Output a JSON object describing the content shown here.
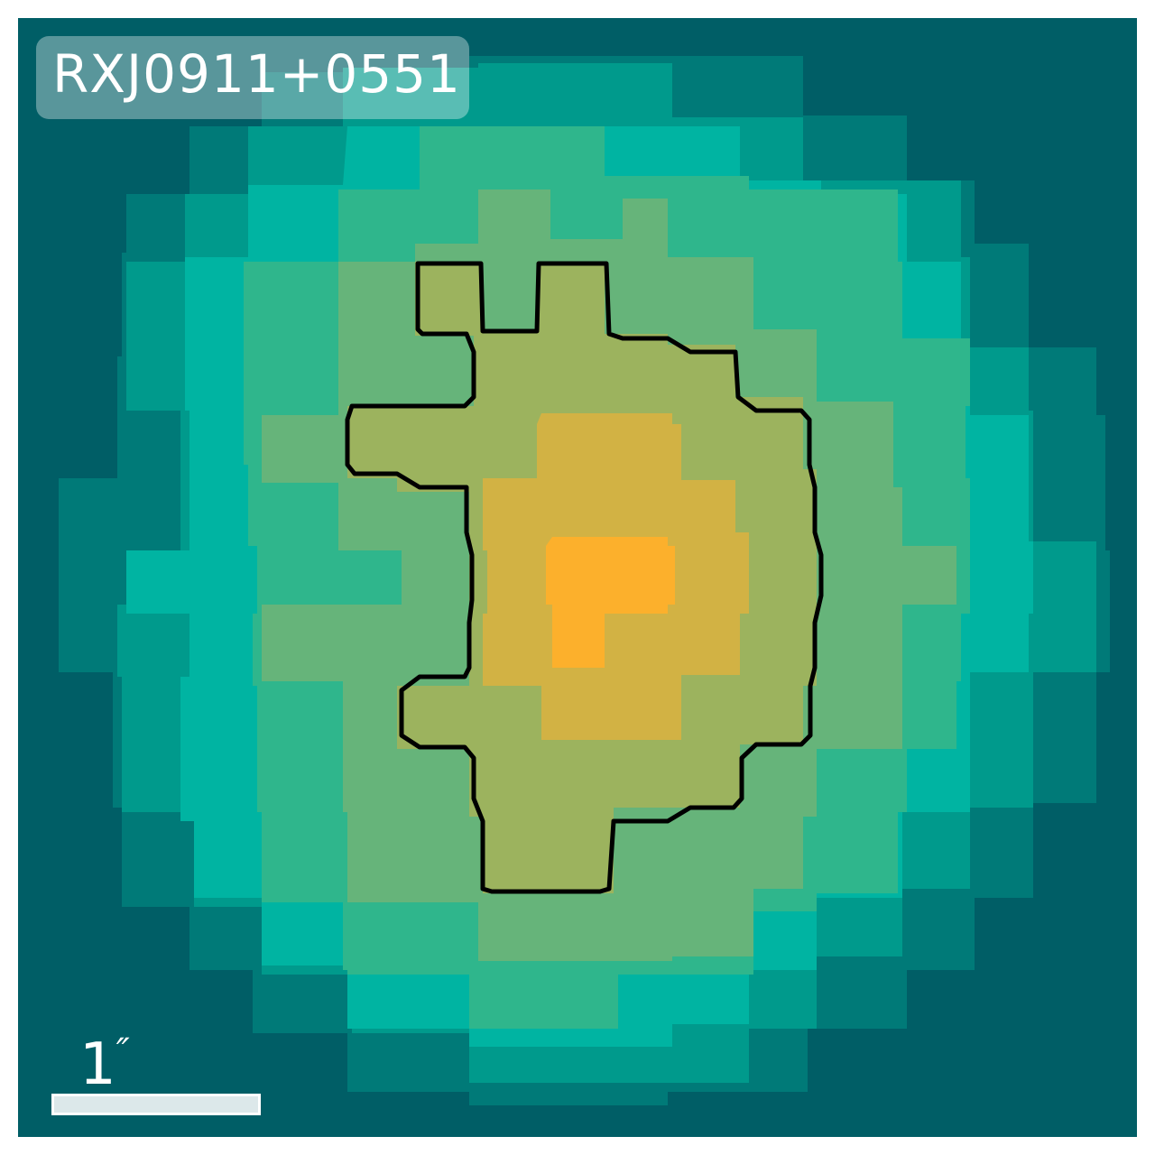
{
  "object_name": "RXJ0911+0551",
  "scale_bar": {
    "value": "1",
    "unit": "″"
  },
  "colors": {
    "background": "#005e66",
    "levels": [
      "#005e66",
      "#007a78",
      "#009a8c",
      "#00b4a2",
      "#2fb68c",
      "#66b47a",
      "#9cb35e",
      "#d2b244",
      "#fcb02c"
    ],
    "contour": "#000000"
  }
}
